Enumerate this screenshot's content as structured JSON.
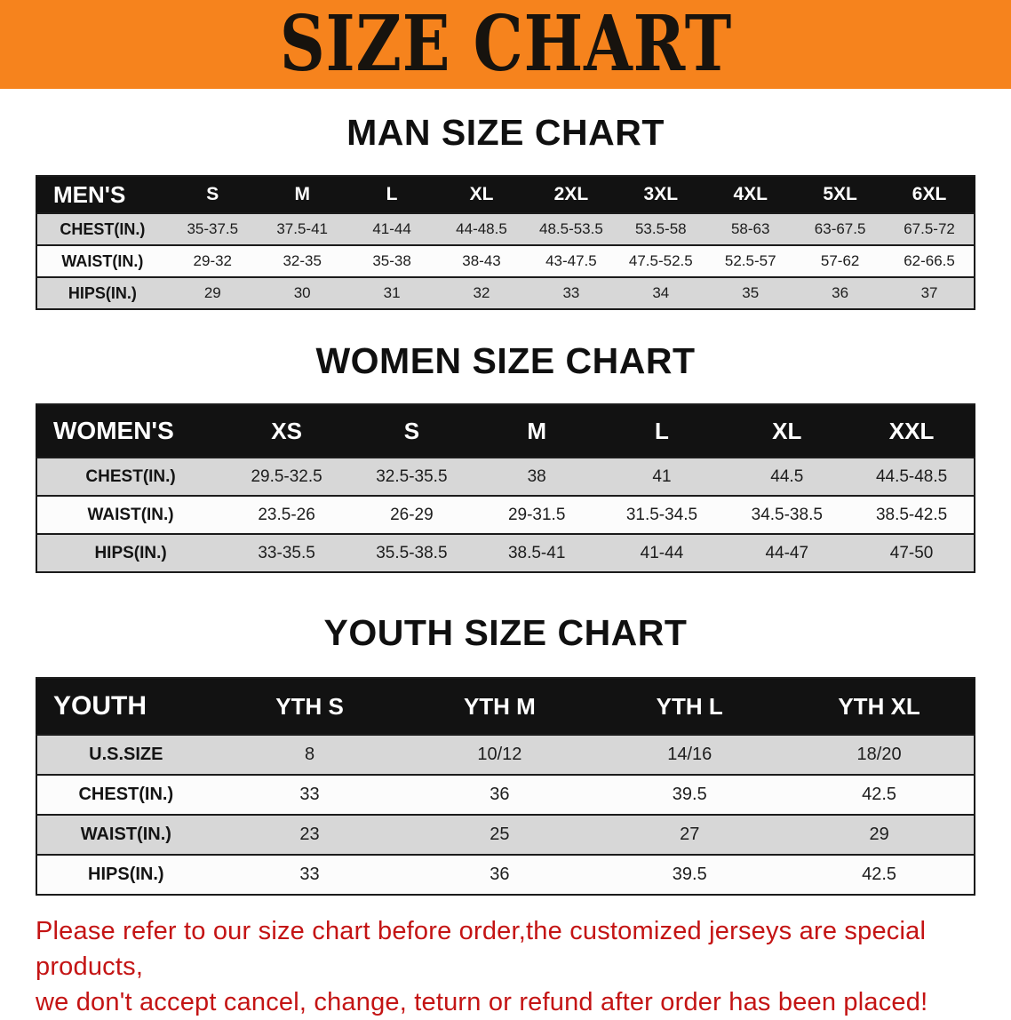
{
  "banner": {
    "title": "SIZE CHART"
  },
  "sections": {
    "men": {
      "heading": "MAN SIZE CHART",
      "table": {
        "header": [
          "MEN'S",
          "S",
          "M",
          "L",
          "XL",
          "2XL",
          "3XL",
          "4XL",
          "5XL",
          "6XL"
        ],
        "rows": [
          {
            "label": "CHEST(IN.)",
            "values": [
              "35-37.5",
              "37.5-41",
              "41-44",
              "44-48.5",
              "48.5-53.5",
              "53.5-58",
              "58-63",
              "63-67.5",
              "67.5-72"
            ]
          },
          {
            "label": "WAIST(IN.)",
            "values": [
              "29-32",
              "32-35",
              "35-38",
              "38-43",
              "43-47.5",
              "47.5-52.5",
              "52.5-57",
              "57-62",
              "62-66.5"
            ]
          },
          {
            "label": "HIPS(IN.)",
            "values": [
              "29",
              "30",
              "31",
              "32",
              "33",
              "34",
              "35",
              "36",
              "37"
            ]
          }
        ]
      }
    },
    "women": {
      "heading": "WOMEN SIZE CHART",
      "table": {
        "header": [
          "WOMEN'S",
          "XS",
          "S",
          "M",
          "L",
          "XL",
          "XXL"
        ],
        "rows": [
          {
            "label": "CHEST(IN.)",
            "values": [
              "29.5-32.5",
              "32.5-35.5",
              "38",
              "41",
              "44.5",
              "44.5-48.5"
            ]
          },
          {
            "label": "WAIST(IN.)",
            "values": [
              "23.5-26",
              "26-29",
              "29-31.5",
              "31.5-34.5",
              "34.5-38.5",
              "38.5-42.5"
            ]
          },
          {
            "label": "HIPS(IN.)",
            "values": [
              "33-35.5",
              "35.5-38.5",
              "38.5-41",
              "41-44",
              "44-47",
              "47-50"
            ]
          }
        ]
      }
    },
    "youth": {
      "heading": "YOUTH SIZE CHART",
      "table": {
        "header": [
          "YOUTH",
          "YTH S",
          "YTH M",
          "YTH L",
          "YTH XL"
        ],
        "rows": [
          {
            "label": "U.S.SIZE",
            "values": [
              "8",
              "10/12",
              "14/16",
              "18/20"
            ]
          },
          {
            "label": "CHEST(IN.)",
            "values": [
              "33",
              "36",
              "39.5",
              "42.5"
            ]
          },
          {
            "label": "WAIST(IN.)",
            "values": [
              "23",
              "25",
              "27",
              "29"
            ]
          },
          {
            "label": "HIPS(IN.)",
            "values": [
              "33",
              "36",
              "39.5",
              "42.5"
            ]
          }
        ]
      }
    }
  },
  "footer": {
    "line1": "Please refer to our size chart before order,the customized jerseys are special products,",
    "line2": "we don't accept cancel, change, teturn or refund after order has been placed!"
  },
  "colors": {
    "banner_bg": "#F6831D",
    "table_header_bg": "#121212",
    "row_gray": "#D7D7D7",
    "row_white": "#FCFCFC",
    "disclaimer_red": "#C41414"
  }
}
